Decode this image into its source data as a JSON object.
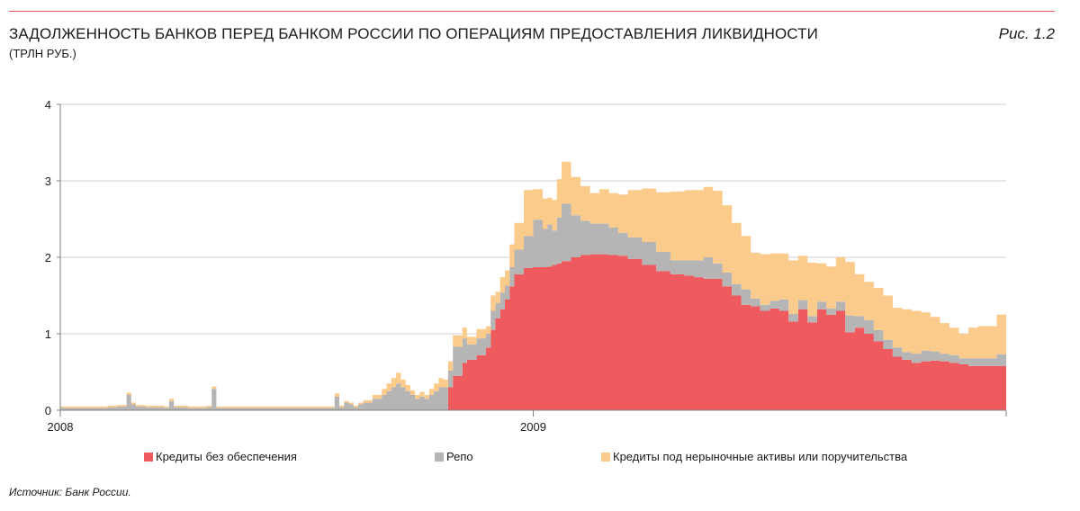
{
  "header": {
    "title": "ЗАДОЛЖЕННОСТЬ БАНКОВ ПЕРЕД БАНКОМ РОССИИ ПО ОПЕРАЦИЯМ ПРЕДОСТАВЛЕНИЯ ЛИКВИДНОСТИ",
    "subtitle": "(ТРЛН РУБ.)",
    "figure_label": "Рис. 1.2"
  },
  "footer": {
    "source": "Источник: Банк России."
  },
  "colors": {
    "accent_rule": "#e8505b",
    "unsecured": "#ef5a5f",
    "repo": "#b5b5b5",
    "nonmarket": "#fbcb8c",
    "axis": "#808080",
    "grid": "#cfcfcf"
  },
  "chart_data": {
    "type": "area",
    "stacked": true,
    "ylim": [
      0,
      4
    ],
    "yticks": [
      "0",
      "1",
      "2",
      "3",
      "4"
    ],
    "xlim": [
      2008.0,
      2010.0
    ],
    "xticks": [
      {
        "value": 2008.0,
        "label": "2008"
      },
      {
        "value": 2009.0,
        "label": "2009"
      }
    ],
    "grid": "horizontal",
    "legend_position": "bottom",
    "x": [
      2008.0,
      2008.04,
      2008.08,
      2008.1,
      2008.12,
      2008.14,
      2008.15,
      2008.16,
      2008.18,
      2008.22,
      2008.23,
      2008.24,
      2008.27,
      2008.31,
      2008.32,
      2008.33,
      2008.36,
      2008.4,
      2008.5,
      2008.55,
      2008.57,
      2008.58,
      2008.59,
      2008.6,
      2008.61,
      2008.62,
      2008.63,
      2008.64,
      2008.66,
      2008.68,
      2008.69,
      2008.7,
      2008.71,
      2008.72,
      2008.73,
      2008.74,
      2008.75,
      2008.76,
      2008.77,
      2008.78,
      2008.79,
      2008.8,
      2008.81,
      2008.82,
      2008.83,
      2008.85,
      2008.86,
      2008.88,
      2008.9,
      2008.91,
      2008.92,
      2008.93,
      2008.94,
      2008.95,
      2008.96,
      2008.98,
      2009.0,
      2009.02,
      2009.03,
      2009.04,
      2009.05,
      2009.06,
      2009.08,
      2009.1,
      2009.12,
      2009.14,
      2009.16,
      2009.18,
      2009.2,
      2009.23,
      2009.26,
      2009.29,
      2009.32,
      2009.34,
      2009.36,
      2009.38,
      2009.4,
      2009.42,
      2009.44,
      2009.46,
      2009.48,
      2009.5,
      2009.52,
      2009.54,
      2009.56,
      2009.58,
      2009.6,
      2009.62,
      2009.64,
      2009.66,
      2009.68,
      2009.7,
      2009.72,
      2009.74,
      2009.76,
      2009.78,
      2009.8,
      2009.82,
      2009.84,
      2009.86,
      2009.88,
      2009.9,
      2009.92,
      2009.94,
      2009.96,
      2009.98,
      2010.0
    ],
    "series": [
      {
        "name": "Кредиты без обеспечения",
        "color_key": "unsecured",
        "values": [
          0,
          0,
          0,
          0,
          0,
          0,
          0,
          0,
          0,
          0,
          0,
          0,
          0,
          0,
          0,
          0,
          0,
          0,
          0,
          0,
          0,
          0,
          0,
          0,
          0,
          0,
          0,
          0,
          0,
          0,
          0,
          0,
          0,
          0,
          0,
          0,
          0,
          0,
          0,
          0,
          0,
          0,
          0,
          0.3,
          0.45,
          0.62,
          0.66,
          0.72,
          0.82,
          1.05,
          1.2,
          1.32,
          1.45,
          1.62,
          1.78,
          1.86,
          1.87,
          1.87,
          1.88,
          1.9,
          1.92,
          1.95,
          2.0,
          2.03,
          2.04,
          2.04,
          2.03,
          2.02,
          1.98,
          1.9,
          1.82,
          1.78,
          1.76,
          1.74,
          1.72,
          1.72,
          1.62,
          1.5,
          1.38,
          1.36,
          1.3,
          1.33,
          1.3,
          1.16,
          1.32,
          1.15,
          1.32,
          1.25,
          1.3,
          1.02,
          1.08,
          1.0,
          0.9,
          0.8,
          0.7,
          0.66,
          0.62,
          0.64,
          0.65,
          0.64,
          0.62,
          0.6,
          0.58,
          0.58,
          0.58,
          0.58,
          0.5
        ]
      },
      {
        "name": "Репо",
        "color_key": "repo",
        "values": [
          0.03,
          0.03,
          0.03,
          0.04,
          0.05,
          0.2,
          0.08,
          0.05,
          0.04,
          0.03,
          0.12,
          0.04,
          0.03,
          0.04,
          0.28,
          0.03,
          0.03,
          0.03,
          0.03,
          0.03,
          0.03,
          0.18,
          0.04,
          0.1,
          0.08,
          0.04,
          0.08,
          0.1,
          0.15,
          0.2,
          0.25,
          0.3,
          0.35,
          0.3,
          0.25,
          0.2,
          0.15,
          0.18,
          0.15,
          0.2,
          0.25,
          0.3,
          0.3,
          0.22,
          0.38,
          0.32,
          0.2,
          0.22,
          0.18,
          0.25,
          0.2,
          0.22,
          0.18,
          0.25,
          0.32,
          0.42,
          0.62,
          0.5,
          0.55,
          0.45,
          0.6,
          0.75,
          0.55,
          0.45,
          0.4,
          0.4,
          0.36,
          0.3,
          0.28,
          0.3,
          0.25,
          0.18,
          0.2,
          0.22,
          0.28,
          0.2,
          0.18,
          0.15,
          0.2,
          0.1,
          0.08,
          0.1,
          0.15,
          0.1,
          0.12,
          0.08,
          0.1,
          0.08,
          0.12,
          0.22,
          0.15,
          0.18,
          0.15,
          0.12,
          0.12,
          0.1,
          0.12,
          0.14,
          0.12,
          0.1,
          0.1,
          0.08,
          0.1,
          0.1,
          0.1,
          0.15,
          0.28
        ]
      },
      {
        "name": "Кредиты под нерыночные активы или поручительства",
        "color_key": "nonmarket",
        "values": [
          0.02,
          0.02,
          0.02,
          0.02,
          0.02,
          0.03,
          0.02,
          0.02,
          0.02,
          0.02,
          0.03,
          0.02,
          0.02,
          0.02,
          0.03,
          0.02,
          0.02,
          0.02,
          0.02,
          0.02,
          0.02,
          0.04,
          0.02,
          0.02,
          0.02,
          0.02,
          0.02,
          0.03,
          0.05,
          0.08,
          0.1,
          0.12,
          0.14,
          0.1,
          0.08,
          0.06,
          0.05,
          0.06,
          0.05,
          0.08,
          0.1,
          0.12,
          0.1,
          0.12,
          0.15,
          0.14,
          0.1,
          0.12,
          0.1,
          0.2,
          0.15,
          0.2,
          0.2,
          0.3,
          0.35,
          0.6,
          0.4,
          0.4,
          0.35,
          0.4,
          0.5,
          0.55,
          0.5,
          0.45,
          0.4,
          0.45,
          0.45,
          0.5,
          0.62,
          0.7,
          0.78,
          0.9,
          0.92,
          0.92,
          0.92,
          0.95,
          0.88,
          0.8,
          0.7,
          0.6,
          0.66,
          0.62,
          0.6,
          0.7,
          0.58,
          0.7,
          0.5,
          0.55,
          0.58,
          0.7,
          0.55,
          0.5,
          0.55,
          0.58,
          0.52,
          0.56,
          0.56,
          0.5,
          0.45,
          0.4,
          0.36,
          0.32,
          0.4,
          0.42,
          0.42,
          0.52,
          0.42
        ]
      }
    ]
  }
}
